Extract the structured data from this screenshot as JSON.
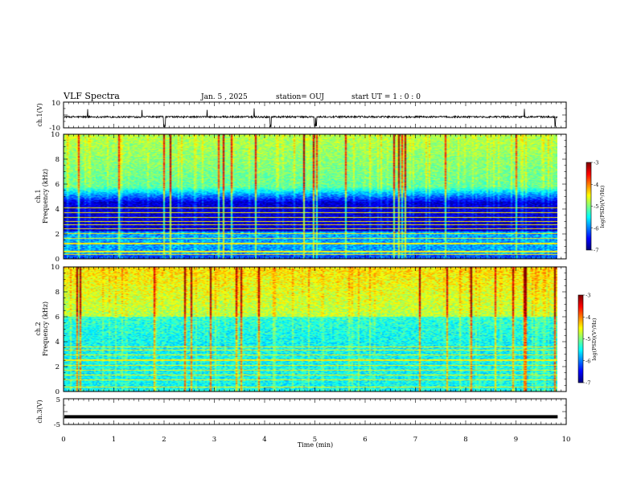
{
  "header": {
    "title": "VLF Spectra",
    "date": "Jan. 5 , 2025",
    "station": "station= OUJ",
    "start_time": "start UT =  1 : 0  : 0"
  },
  "chart_data": [
    {
      "type": "line",
      "panel": "ch1-waveform",
      "ylabel": "ch.1(V)",
      "ylim": [
        -10,
        10
      ],
      "yticks": [
        "10",
        "-10"
      ],
      "baseline": -1.5,
      "spikes_x_min": [
        2.0,
        2.02,
        4.12,
        5.0,
        5.03,
        9.78
      ],
      "color": "#000000"
    },
    {
      "type": "heatmap",
      "panel": "ch1-spectrogram",
      "ylabel": "ch.1\nFrequency (kHz)",
      "ylabel_line1": "ch.1",
      "ylabel_line2": "Frequency (kHz)",
      "ylim": [
        0,
        10
      ],
      "yticks": [
        "0",
        "2",
        "4",
        "6",
        "8",
        "10"
      ],
      "xlim": [
        0,
        10
      ],
      "colorbar": {
        "label": "log(PSD)(V²/Hz)",
        "range": [
          -7,
          -3
        ],
        "ticks": [
          "-3",
          "-4",
          "-5",
          "-6",
          "-7"
        ]
      }
    },
    {
      "type": "heatmap",
      "panel": "ch2-spectrogram",
      "ylabel_line1": "ch.2",
      "ylabel_line2": "Frequency (kHz)",
      "ylim": [
        0,
        10
      ],
      "yticks": [
        "0",
        "2",
        "4",
        "6",
        "8",
        "10"
      ],
      "xlim": [
        0,
        10
      ],
      "colorbar": {
        "label": "log(PSD)(V²/Hz)",
        "range": [
          -7,
          -3
        ],
        "ticks": [
          "-3",
          "-4",
          "-5",
          "-6",
          "-7"
        ]
      }
    },
    {
      "type": "line",
      "panel": "ch3-waveform",
      "ylabel": "ch.3(V)",
      "ylim": [
        -5,
        5
      ],
      "yticks": [
        "5",
        "-5"
      ],
      "baseline": -2.0,
      "color": "#000000"
    }
  ],
  "x_axis": {
    "label": "Time (min)",
    "ticks": [
      "0",
      "1",
      "2",
      "3",
      "4",
      "5",
      "6",
      "7",
      "8",
      "9",
      "10"
    ],
    "range": [
      0,
      10
    ],
    "data_end": 9.83
  }
}
